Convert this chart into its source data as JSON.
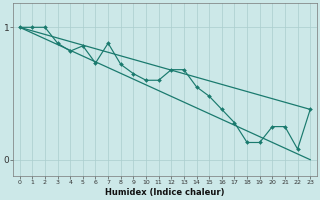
{
  "xlabel": "Humidex (Indice chaleur)",
  "background_color": "#cce8e8",
  "grid_color": "#aacece",
  "line_color": "#1a7a6e",
  "xlim": [
    -0.5,
    23.5
  ],
  "ylim": [
    -0.12,
    1.18
  ],
  "xticks": [
    0,
    1,
    2,
    3,
    4,
    5,
    6,
    7,
    8,
    9,
    10,
    11,
    12,
    13,
    14,
    15,
    16,
    17,
    18,
    19,
    20,
    21,
    22,
    23
  ],
  "yticks": [
    0,
    1
  ],
  "upper_line_x": [
    0,
    23
  ],
  "upper_line_y": [
    1.0,
    0.38
  ],
  "lower_line_x": [
    0,
    23
  ],
  "lower_line_y": [
    1.0,
    0.0
  ],
  "zigzag_x": [
    0,
    1,
    2,
    3,
    4,
    5,
    6,
    7,
    8,
    9,
    10,
    11,
    12,
    13,
    14,
    15,
    16,
    17,
    18,
    19,
    20,
    21,
    22,
    23
  ],
  "zigzag_y": [
    1.0,
    1.0,
    1.0,
    0.88,
    0.82,
    0.86,
    0.73,
    0.88,
    0.72,
    0.65,
    0.6,
    0.6,
    0.68,
    0.68,
    0.55,
    0.48,
    0.38,
    0.28,
    0.13,
    0.13,
    0.25,
    0.25,
    0.08,
    0.38
  ]
}
